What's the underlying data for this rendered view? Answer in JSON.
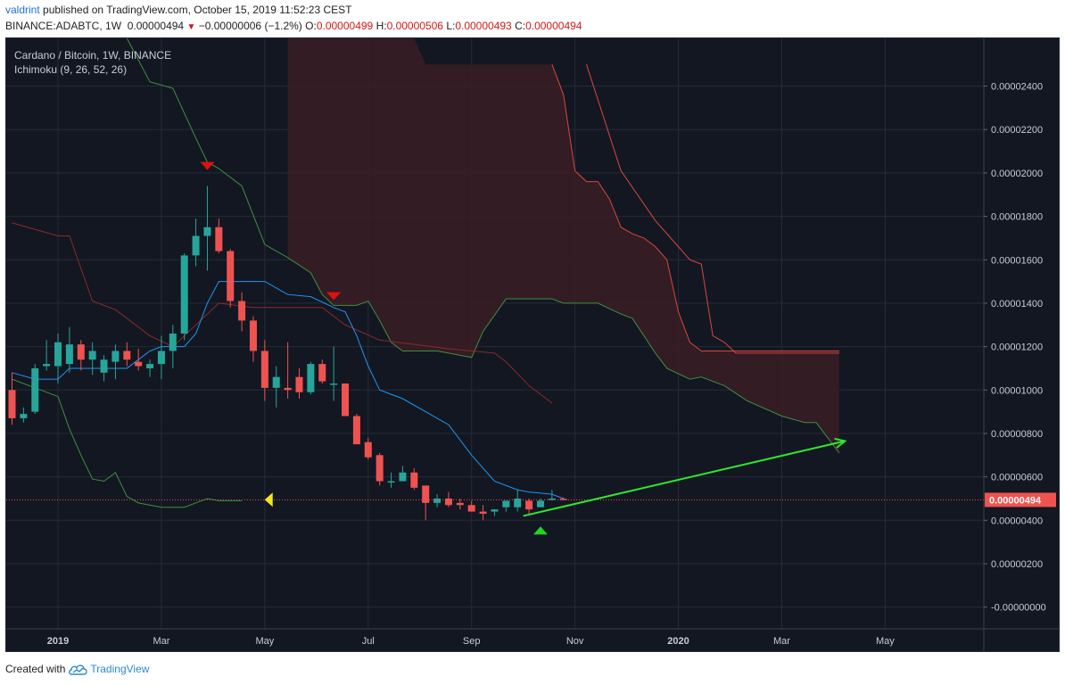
{
  "header": {
    "author": "valdrint",
    "published": " published on TradingView.com, October 15, 2019 11:52:23 CEST",
    "symbol_line": "BINANCE:ADABTC, 1W",
    "last": "0.00000494",
    "change": "−0.00000006 (−1.2%)",
    "o_label": "O:",
    "o": "0.00000499",
    "h_label": "H:",
    "h": "0.00000506",
    "l_label": "L:",
    "l": "0.00000493",
    "c_label": "C:",
    "c": "0.00000494"
  },
  "legend": {
    "pair": "Cardano / Bitcoin, 1W, BINANCE",
    "indicator": "Ichimoku (9, 26, 52, 26)"
  },
  "footer": {
    "created": "Created with",
    "brand": "TradingView"
  },
  "colors": {
    "background": "#131722",
    "up": "#26a69a",
    "down": "#ef5350",
    "tenkan": "#2196f3",
    "kijun": "#8a2a2a",
    "span_a": "#3f8f3f",
    "span_b": "#d64a3a",
    "cloud": "#3a1d23",
    "price_line": "#ef5350",
    "arrow": "#2ee82e",
    "marker_red": "#e01010",
    "marker_yellow": "#f5e51f",
    "marker_green": "#22d422"
  },
  "chart_data": {
    "type": "candlestick",
    "x_ticks": [
      "2019",
      "Mar",
      "May",
      "Jul",
      "Sep",
      "Nov",
      "2020",
      "Mar",
      "May"
    ],
    "x_tick_weeks": [
      4,
      13,
      22,
      31,
      40,
      49,
      58,
      67,
      76
    ],
    "y_ticks": [
      "0.00002400",
      "0.00002200",
      "0.00002000",
      "0.00001800",
      "0.00001600",
      "0.00001400",
      "0.00001200",
      "0.00001000",
      "0.00000800",
      "0.00000600",
      "0.00000400",
      "0.00000200",
      "-0.00000000"
    ],
    "y_tick_values": [
      2400,
      2200,
      2000,
      1800,
      1600,
      1400,
      1200,
      1000,
      800,
      600,
      400,
      200,
      0
    ],
    "ylim": [
      -100,
      2620
    ],
    "value_unit": "1e-8 BTC",
    "current_price_label": "0.00000494",
    "current_price": 494,
    "candles": [
      [
        1000,
        1080,
        840,
        870
      ],
      [
        870,
        920,
        850,
        890
      ],
      [
        900,
        1120,
        890,
        1100
      ],
      [
        1110,
        1230,
        1090,
        1120
      ],
      [
        1110,
        1260,
        1030,
        1220
      ],
      [
        1120,
        1290,
        1080,
        1210
      ],
      [
        1210,
        1230,
        1090,
        1140
      ],
      [
        1140,
        1220,
        1070,
        1180
      ],
      [
        1080,
        1160,
        1040,
        1140
      ],
      [
        1130,
        1210,
        1050,
        1180
      ],
      [
        1180,
        1220,
        1110,
        1140
      ],
      [
        1130,
        1190,
        1090,
        1110
      ],
      [
        1100,
        1140,
        1060,
        1120
      ],
      [
        1120,
        1250,
        1050,
        1180
      ],
      [
        1180,
        1300,
        1100,
        1260
      ],
      [
        1260,
        1630,
        1230,
        1620
      ],
      [
        1620,
        1790,
        1570,
        1710
      ],
      [
        1710,
        1940,
        1550,
        1750
      ],
      [
        1750,
        1790,
        1630,
        1640
      ],
      [
        1640,
        1650,
        1380,
        1410
      ],
      [
        1410,
        1450,
        1270,
        1320
      ],
      [
        1320,
        1340,
        1130,
        1180
      ],
      [
        1180,
        1230,
        950,
        1010
      ],
      [
        1010,
        1110,
        920,
        1060
      ],
      [
        1010,
        1220,
        960,
        1000
      ],
      [
        1060,
        1100,
        960,
        990
      ],
      [
        990,
        1130,
        980,
        1120
      ],
      [
        1120,
        1140,
        1030,
        1040
      ],
      [
        1030,
        1200,
        950,
        1030
      ],
      [
        1030,
        1020,
        890,
        880
      ],
      [
        880,
        890,
        760,
        750
      ],
      [
        760,
        780,
        680,
        690
      ],
      [
        700,
        710,
        560,
        580
      ],
      [
        580,
        620,
        550,
        580
      ],
      [
        580,
        650,
        580,
        620
      ],
      [
        620,
        640,
        540,
        550
      ],
      [
        560,
        550,
        400,
        480
      ],
      [
        480,
        520,
        460,
        500
      ],
      [
        500,
        530,
        460,
        470
      ],
      [
        480,
        500,
        450,
        470
      ],
      [
        470,
        490,
        440,
        440
      ],
      [
        440,
        470,
        400,
        430
      ],
      [
        440,
        450,
        420,
        450
      ],
      [
        460,
        490,
        440,
        490
      ],
      [
        460,
        540,
        440,
        500
      ],
      [
        490,
        500,
        430,
        450
      ],
      [
        460,
        500,
        460,
        490
      ],
      [
        500,
        540,
        490,
        500
      ],
      [
        499,
        506,
        493,
        494
      ]
    ],
    "tenkan": [
      [
        0,
        1080
      ],
      [
        2,
        1050
      ],
      [
        4,
        1050
      ],
      [
        5,
        1100
      ],
      [
        6,
        1100
      ],
      [
        10,
        1100
      ],
      [
        12,
        1180
      ],
      [
        13,
        1200
      ],
      [
        15,
        1200
      ],
      [
        16,
        1260
      ],
      [
        17,
        1400
      ],
      [
        18,
        1500
      ],
      [
        22,
        1500
      ],
      [
        24,
        1440
      ],
      [
        26,
        1430
      ],
      [
        28,
        1380
      ],
      [
        29,
        1360
      ],
      [
        30,
        1250
      ],
      [
        31,
        1110
      ],
      [
        32,
        1000
      ],
      [
        34,
        960
      ],
      [
        36,
        900
      ],
      [
        37,
        870
      ],
      [
        38,
        840
      ],
      [
        40,
        700
      ],
      [
        42,
        580
      ],
      [
        44,
        540
      ],
      [
        45,
        530
      ],
      [
        47,
        520
      ],
      [
        48,
        500
      ]
    ],
    "kijun": [
      [
        0,
        1770
      ],
      [
        4,
        1710
      ],
      [
        5,
        1710
      ],
      [
        7,
        1410
      ],
      [
        9,
        1370
      ],
      [
        12,
        1250
      ],
      [
        14,
        1200
      ],
      [
        15,
        1250
      ],
      [
        18,
        1400
      ],
      [
        21,
        1380
      ],
      [
        27,
        1380
      ],
      [
        29,
        1300
      ],
      [
        32,
        1230
      ],
      [
        38,
        1190
      ],
      [
        42,
        1170
      ],
      [
        43,
        1130
      ],
      [
        45,
        1020
      ],
      [
        47,
        940
      ]
    ],
    "span_a": [
      [
        0,
        1050
      ],
      [
        4,
        970
      ],
      [
        5,
        820
      ],
      [
        6,
        700
      ],
      [
        7,
        590
      ],
      [
        8,
        580
      ],
      [
        9,
        620
      ],
      [
        10,
        510
      ],
      [
        11,
        480
      ],
      [
        13,
        460
      ],
      [
        15,
        460
      ],
      [
        16,
        480
      ],
      [
        17,
        500
      ],
      [
        18,
        490
      ],
      [
        19,
        490
      ],
      [
        20,
        490
      ]
    ],
    "span_b_tail": [
      [
        50,
        2500
      ],
      [
        53,
        2010
      ],
      [
        56,
        1780
      ],
      [
        59,
        1600
      ],
      [
        60,
        1580
      ],
      [
        61,
        1250
      ],
      [
        62,
        1220
      ],
      [
        63,
        1170
      ],
      [
        72,
        1170
      ]
    ],
    "span_a_full": [
      [
        10,
        2620
      ],
      [
        12,
        2420
      ],
      [
        14,
        2390
      ],
      [
        16,
        2160
      ],
      [
        17,
        2050
      ],
      [
        18,
        2020
      ],
      [
        20,
        1940
      ],
      [
        22,
        1670
      ],
      [
        24,
        1610
      ],
      [
        26,
        1540
      ],
      [
        27,
        1440
      ],
      [
        28,
        1390
      ],
      [
        30,
        1390
      ],
      [
        31,
        1410
      ],
      [
        32,
        1320
      ],
      [
        33,
        1220
      ],
      [
        34,
        1180
      ],
      [
        37,
        1180
      ],
      [
        40,
        1150
      ],
      [
        41,
        1270
      ],
      [
        43,
        1420
      ],
      [
        44,
        1420
      ],
      [
        47,
        1420
      ],
      [
        48,
        1400
      ],
      [
        51,
        1400
      ],
      [
        53,
        1350
      ],
      [
        54,
        1330
      ],
      [
        55,
        1250
      ],
      [
        56,
        1170
      ],
      [
        57,
        1100
      ],
      [
        59,
        1050
      ],
      [
        60,
        1060
      ],
      [
        62,
        1020
      ],
      [
        64,
        950
      ],
      [
        67,
        880
      ],
      [
        69,
        850
      ],
      [
        70,
        850
      ],
      [
        71,
        780
      ],
      [
        72,
        710
      ]
    ],
    "cloud_top": [
      [
        24,
        2620
      ],
      [
        35,
        2620
      ],
      [
        36,
        2500
      ],
      [
        47,
        2500
      ],
      [
        48,
        2360
      ],
      [
        49,
        2010
      ],
      [
        50,
        1960
      ],
      [
        51,
        1960
      ],
      [
        52,
        1880
      ],
      [
        53,
        1750
      ],
      [
        54,
        1720
      ],
      [
        55,
        1700
      ],
      [
        56,
        1660
      ],
      [
        57,
        1600
      ],
      [
        58,
        1360
      ],
      [
        59,
        1220
      ],
      [
        60,
        1180
      ],
      [
        63,
        1180
      ],
      [
        72,
        1180
      ]
    ],
    "markers": [
      {
        "type": "down",
        "color": "red",
        "week": 17,
        "value": 2030
      },
      {
        "type": "down",
        "color": "red",
        "week": 28,
        "value": 1430
      },
      {
        "type": "left",
        "color": "yellow",
        "week": 22.3,
        "value": 495
      },
      {
        "type": "up",
        "color": "green",
        "week": 46,
        "value": 355
      }
    ],
    "arrow": {
      "from": [
        44.5,
        420
      ],
      "to": [
        72.5,
        765
      ]
    }
  }
}
